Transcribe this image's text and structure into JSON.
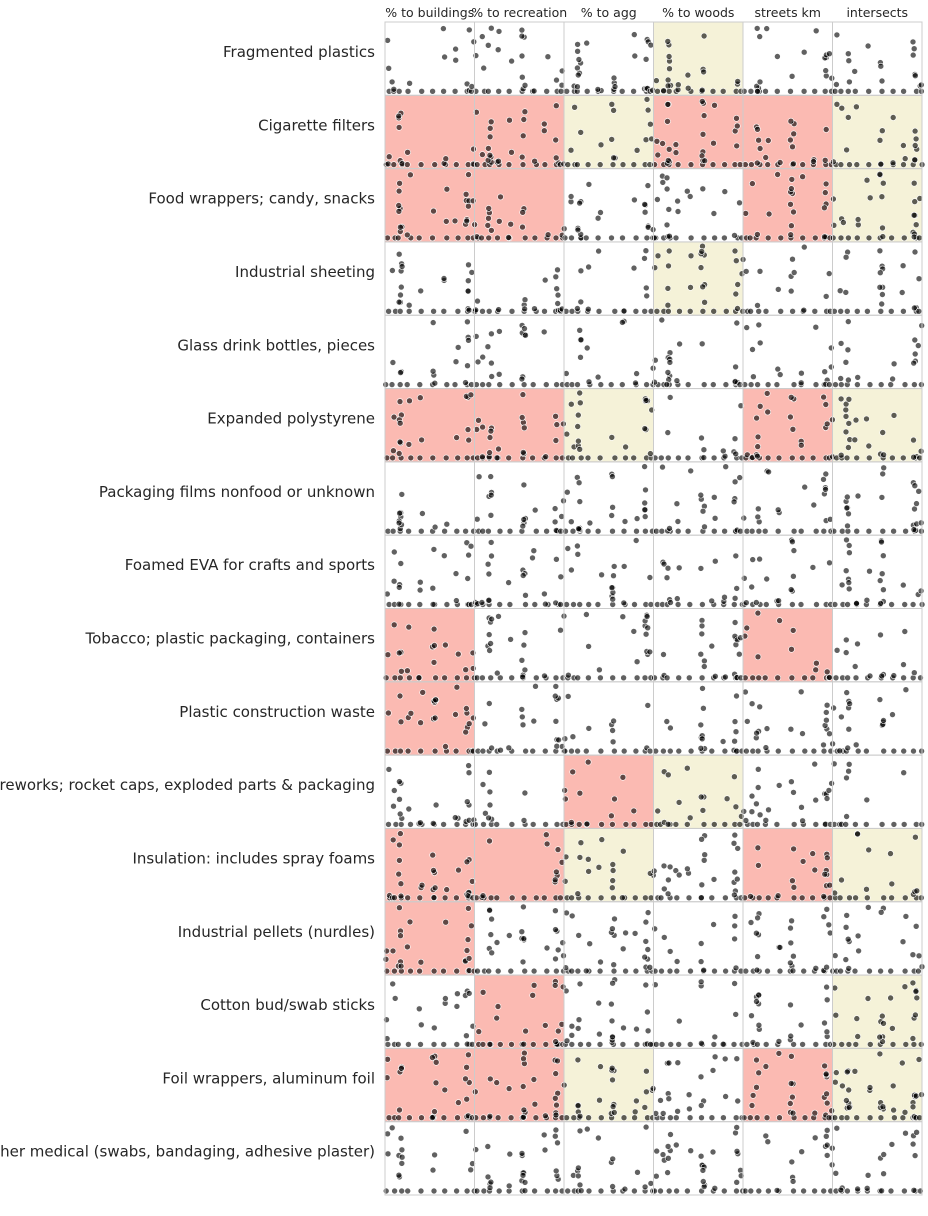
{
  "chart_data": {
    "type": "scatter",
    "columns": [
      "% to buildings",
      "% to recreation",
      "% to agg",
      "% to woods",
      "streets km",
      "intersects"
    ],
    "rows": [
      "Fragmented plastics",
      "Cigarette filters",
      "Food wrappers; candy, snacks",
      "Industrial sheeting",
      "Glass drink bottles, pieces",
      "Expanded polystyrene",
      "Packaging films nonfood or unknown",
      "Foamed EVA for crafts and sports",
      "Tobacco; plastic packaging, containers",
      "Plastic construction waste",
      "Fireworks; rocket caps, exploded parts & packaging",
      "Insulation: includes spray foams",
      "Industrial pellets (nurdles)",
      "Cotton bud/swab sticks",
      "Foil wrappers, aluminum foil",
      "Other medical (swabs, bandaging, adhesive plaster)"
    ],
    "cell_highlight": [
      [
        null,
        null,
        null,
        "positive",
        null,
        null
      ],
      [
        "negative",
        "negative",
        "positive",
        "negative",
        "negative",
        "positive"
      ],
      [
        "negative",
        "negative",
        null,
        null,
        "negative",
        "positive"
      ],
      [
        null,
        null,
        null,
        "positive",
        null,
        null
      ],
      [
        null,
        null,
        null,
        null,
        null,
        null
      ],
      [
        "negative",
        "negative",
        "positive",
        null,
        "negative",
        "positive"
      ],
      [
        null,
        null,
        null,
        null,
        null,
        null
      ],
      [
        null,
        null,
        null,
        null,
        null,
        null
      ],
      [
        "negative",
        null,
        null,
        null,
        "negative",
        null
      ],
      [
        "negative",
        null,
        null,
        null,
        null,
        null
      ],
      [
        null,
        null,
        "negative",
        "positive",
        null,
        null
      ],
      [
        "negative",
        "negative",
        "positive",
        null,
        "negative",
        "positive"
      ],
      [
        "negative",
        null,
        null,
        null,
        null,
        null
      ],
      [
        null,
        "negative",
        null,
        null,
        null,
        "positive"
      ],
      [
        "negative",
        "negative",
        "positive",
        null,
        "negative",
        "positive"
      ],
      [
        null,
        null,
        null,
        null,
        null,
        null
      ]
    ],
    "highlight_colors": {
      "negative": "#fbbab2",
      "positive": "#f5f2d8"
    },
    "point_color": "#000000",
    "point_opacity": 0.62,
    "grid": false,
    "legend": "none"
  }
}
